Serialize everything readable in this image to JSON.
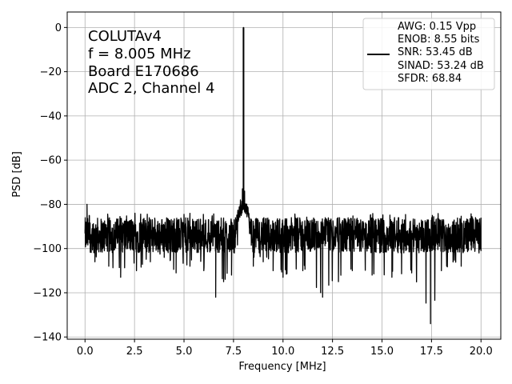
{
  "chart_data": {
    "type": "line",
    "xlabel": "Frequency [MHz]",
    "ylabel": "PSD [dB]",
    "xlim": [
      -0.9,
      21.0
    ],
    "ylim": [
      -141,
      7
    ],
    "xticks": [
      0.0,
      2.5,
      5.0,
      7.5,
      10.0,
      12.5,
      15.0,
      17.5,
      20.0
    ],
    "xtick_labels": [
      "0.0",
      "2.5",
      "5.0",
      "7.5",
      "10.0",
      "12.5",
      "15.0",
      "17.5",
      "20.0"
    ],
    "yticks": [
      0,
      -20,
      -40,
      -60,
      -80,
      -100,
      -120,
      -140
    ],
    "ytick_labels": [
      "0",
      "−20",
      "−40",
      "−60",
      "−80",
      "−100",
      "−120",
      "−140"
    ],
    "grid": true,
    "annotations": [
      "COLUTAv4",
      "f = 8.005 MHz",
      "Board E170686",
      "ADC 2, Channel 4"
    ],
    "legend_position": "upper right",
    "legend_lines": [
      "AWG: 0.15 Vpp",
      "ENOB: 8.55 bits",
      "SNR: 53.45 dB",
      "SINAD: 53.24 dB",
      "SFDR: 68.84"
    ],
    "series": [
      {
        "color": "#000000",
        "x": [
          0.0,
          0.1,
          0.5,
          1.2,
          1.8,
          2.6,
          3.3,
          4.0,
          4.6,
          5.3,
          6.0,
          6.6,
          7.0,
          7.4,
          7.6,
          7.75,
          7.85,
          7.95,
          8.005,
          8.06,
          8.15,
          8.3,
          8.5,
          9.0,
          9.5,
          10.0,
          11.0,
          12.0,
          12.8,
          13.5,
          14.5,
          15.5,
          16.5,
          17.45,
          18.0,
          19.0,
          20.0
        ],
        "y": [
          -93,
          -80,
          -106,
          -108,
          -113,
          -110,
          -106,
          -104,
          -111,
          -108,
          -110,
          -122,
          -115,
          -112,
          -95,
          -84,
          -78,
          -73,
          0,
          -74,
          -80,
          -86,
          -108,
          -106,
          -110,
          -113,
          -110,
          -122,
          -115,
          -110,
          -112,
          -113,
          -111,
          -134,
          -110,
          -108,
          -86
        ],
        "style": "dense noise trace; values are envelope extrema"
      }
    ]
  }
}
